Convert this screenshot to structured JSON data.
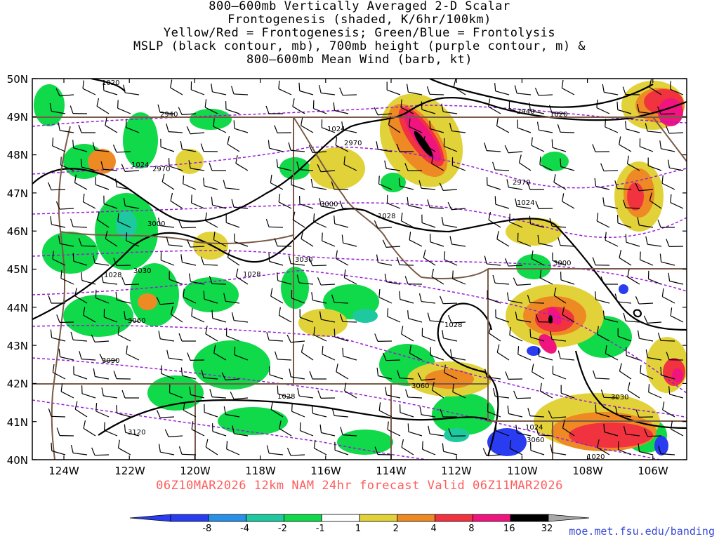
{
  "title_lines": [
    "800–600mb Vertically Averaged 2-D Scalar",
    "Frontogenesis (shaded, K/6hr/100km)",
    "Yellow/Red = Frontogenesis;  Green/Blue = Frontolysis",
    "MSLP (black contour, mb), 700mb height (purple contour, m) &",
    "800–600mb Mean Wind (barb, kt)"
  ],
  "valid_text": "06Z10MAR2026 12km NAM 24hr forecast Valid 06Z11MAR2026",
  "credit": "moe.met.fsu.edu/banding",
  "lat_labels": [
    "50N",
    "49N",
    "48N",
    "47N",
    "46N",
    "45N",
    "44N",
    "43N",
    "42N",
    "41N",
    "40N"
  ],
  "lon_labels": [
    "124W",
    "122W",
    "120W",
    "118W",
    "116W",
    "114W",
    "112W",
    "110W",
    "108W",
    "106W"
  ],
  "mslp_labels": [
    {
      "text": "1020"
    },
    {
      "text": "1024"
    },
    {
      "text": "1024"
    },
    {
      "text": "1028"
    },
    {
      "text": "1028"
    },
    {
      "text": "1020"
    },
    {
      "text": "1024"
    },
    {
      "text": "1028"
    },
    {
      "text": "1028"
    },
    {
      "text": "1028"
    },
    {
      "text": "1024"
    },
    {
      "text": "1020"
    }
  ],
  "height_labels": [
    {
      "text": "2940"
    },
    {
      "text": "2970"
    },
    {
      "text": "3000"
    },
    {
      "text": "3000"
    },
    {
      "text": "3030"
    },
    {
      "text": "3060"
    },
    {
      "text": "3090"
    },
    {
      "text": "3120"
    },
    {
      "text": "2940"
    },
    {
      "text": "2970"
    },
    {
      "text": "2970"
    },
    {
      "text": "3030"
    },
    {
      "text": "3000"
    },
    {
      "text": "3060"
    },
    {
      "text": "3030"
    },
    {
      "text": "3060"
    }
  ],
  "colorbar": {
    "labels": [
      "-8",
      "-4",
      "-2",
      "-1",
      "1",
      "2",
      "4",
      "8",
      "16",
      "32"
    ],
    "colors": [
      "#2a3cf0",
      "#2a8fe6",
      "#1ec9a0",
      "#10d94a",
      "#ffffff",
      "#e2d23a",
      "#ee8a24",
      "#f0333f",
      "#f0147e",
      "#000000"
    ],
    "under_color": "#2a3cf0",
    "over_color": "#a8a8a8"
  },
  "colors": {
    "mslp": "#000000",
    "height": "#9a1cd8",
    "borders": "#7a5a48"
  }
}
